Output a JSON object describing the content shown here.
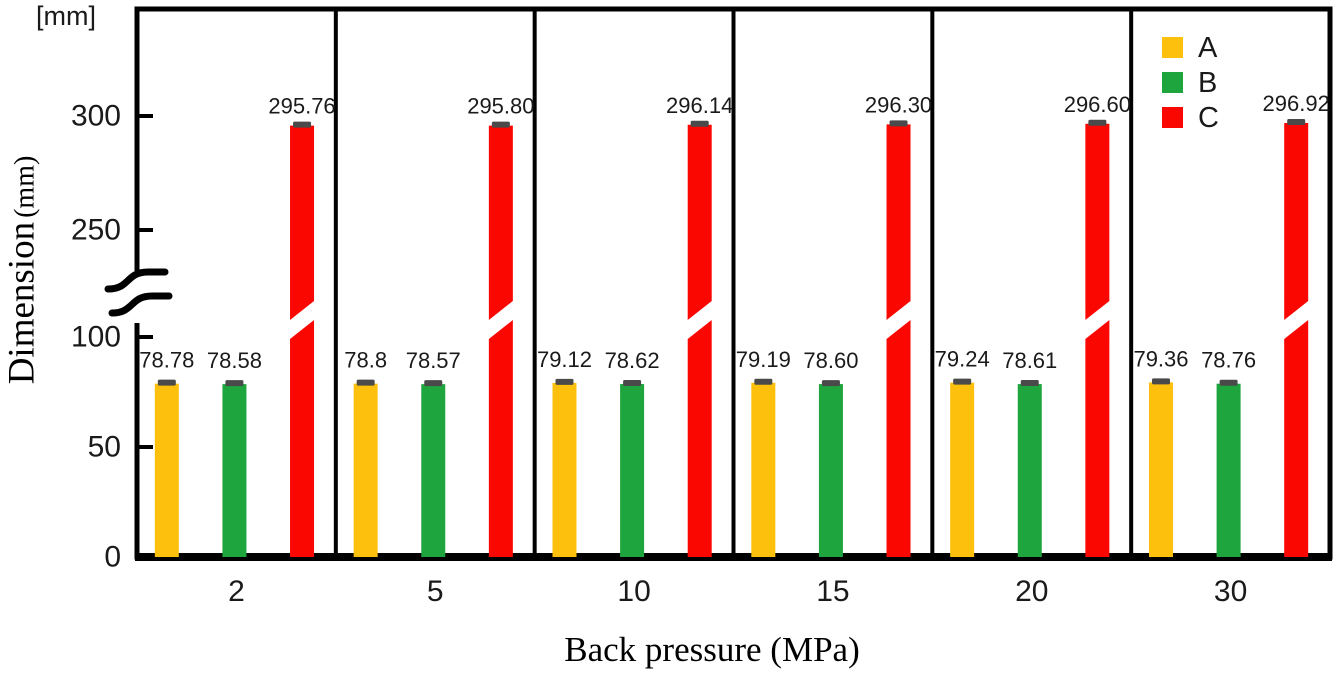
{
  "figure": {
    "unit_label": "[mm]",
    "ylabel_main": "Dimension",
    "ylabel_unit": "(mm)",
    "xlabel": "Back pressure (MPa)"
  },
  "chart_data": {
    "type": "bar",
    "title": "",
    "xlabel": "Back pressure (MPa)",
    "ylabel": "Dimension (mm)",
    "unit_label": "[mm]",
    "categories": [
      "2",
      "5",
      "10",
      "15",
      "20",
      "30"
    ],
    "series": [
      {
        "name": "A",
        "color": "#fcc00d",
        "values": [
          78.78,
          78.8,
          79.12,
          79.19,
          79.24,
          79.36
        ],
        "labels": [
          "78.78",
          "78.8",
          "79.12",
          "79.19",
          "79.24",
          "79.36"
        ]
      },
      {
        "name": "B",
        "color": "#1fa53d",
        "values": [
          78.58,
          78.57,
          78.62,
          78.6,
          78.61,
          78.76
        ],
        "labels": [
          "78.58",
          "78.57",
          "78.62",
          "78.60",
          "78.61",
          "78.76"
        ]
      },
      {
        "name": "C",
        "color": "#fb0702",
        "values": [
          295.76,
          295.8,
          296.14,
          296.3,
          296.6,
          296.92
        ],
        "labels": [
          "295.76",
          "295.80",
          "296.14",
          "296.30",
          "296.60",
          "296.92"
        ]
      }
    ],
    "y_ticks_lower": [
      0,
      50,
      100
    ],
    "y_ticks_upper": [
      250,
      300
    ],
    "axis_break": {
      "lower_max": 100,
      "upper_min": 250
    },
    "ylim_lower": [
      0,
      110
    ],
    "ylim_upper": [
      240,
      305
    ],
    "grid": false,
    "legend_position": "top-right",
    "error_cap_color": "#4a4a4a",
    "frame_color": "#000000"
  }
}
